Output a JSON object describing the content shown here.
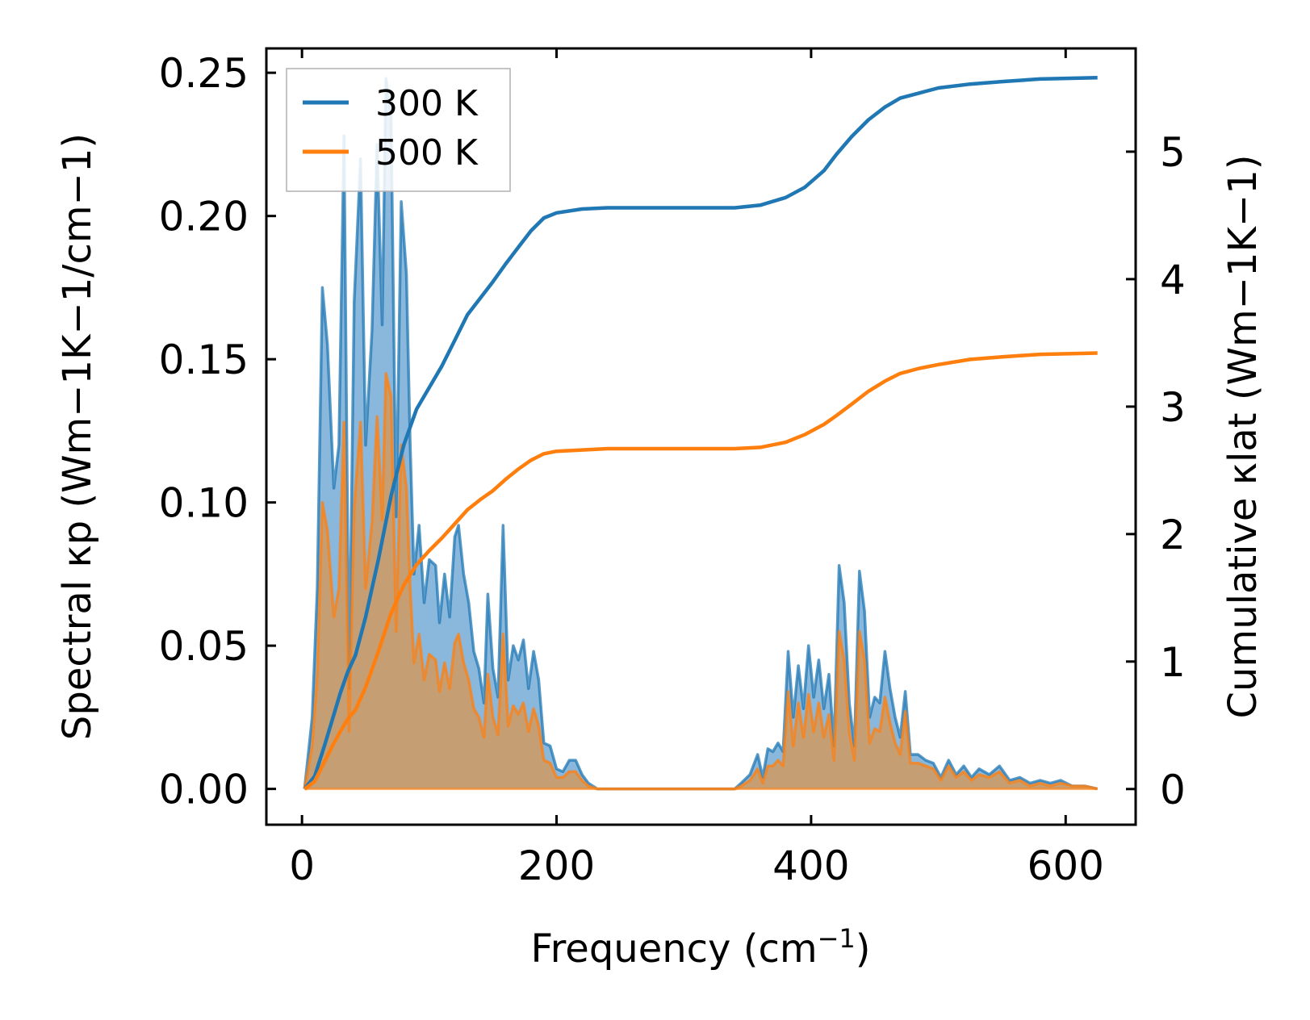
{
  "chart_data": {
    "type": "line",
    "title": "",
    "xlabel": "Frequency (cm",
    "xlabel_sup": "−1",
    "xlabel_end": ")",
    "ylabel_left": "Spectral κp (Wm−1K−1/cm−1)",
    "ylabel_right": "Cumulative κlat (Wm−1K−1)",
    "xlim": [
      -28,
      655
    ],
    "ylim_left": [
      -0.0125,
      0.2585
    ],
    "ylim_right": [
      -0.28,
      5.81
    ],
    "x_ticks": [
      0,
      200,
      400,
      600
    ],
    "x_tick_labels": [
      "0",
      "200",
      "400",
      "600"
    ],
    "y_left_ticks": [
      0,
      0.05,
      0.1,
      0.15,
      0.2,
      0.25
    ],
    "y_left_tick_labels": [
      "0.00",
      "0.05",
      "0.10",
      "0.15",
      "0.20",
      "0.25"
    ],
    "y_right_ticks": [
      0,
      1,
      2,
      3,
      4,
      5
    ],
    "y_right_tick_labels": [
      "0",
      "1",
      "2",
      "3",
      "4",
      "5"
    ],
    "legend": {
      "position": "top-left",
      "entries": [
        "300 K",
        "500 K"
      ]
    },
    "colors": {
      "300K": "#1f77b4",
      "500K": "#ff7f0e",
      "fill300": "#8ab7dc",
      "fill500": "#c69e74"
    },
    "series": [
      {
        "name": "300 K",
        "spectral": [
          [
            2,
            0
          ],
          [
            8,
            0.025
          ],
          [
            12,
            0.07
          ],
          [
            16,
            0.175
          ],
          [
            20,
            0.155
          ],
          [
            25,
            0.105
          ],
          [
            29,
            0.12
          ],
          [
            33,
            0.228
          ],
          [
            37,
            0.035
          ],
          [
            41,
            0.17
          ],
          [
            46,
            0.22
          ],
          [
            50,
            0.12
          ],
          [
            55,
            0.16
          ],
          [
            59,
            0.225
          ],
          [
            63,
            0.162
          ],
          [
            66,
            0.248
          ],
          [
            70,
            0.235
          ],
          [
            74,
            0.095
          ],
          [
            78,
            0.205
          ],
          [
            82,
            0.18
          ],
          [
            85,
            0.12
          ],
          [
            88,
            0.075
          ],
          [
            92,
            0.092
          ],
          [
            96,
            0.065
          ],
          [
            100,
            0.08
          ],
          [
            105,
            0.078
          ],
          [
            108,
            0.058
          ],
          [
            112,
            0.075
          ],
          [
            116,
            0.06
          ],
          [
            120,
            0.088
          ],
          [
            123,
            0.092
          ],
          [
            127,
            0.075
          ],
          [
            131,
            0.065
          ],
          [
            135,
            0.048
          ],
          [
            139,
            0.042
          ],
          [
            143,
            0.03
          ],
          [
            146,
            0.068
          ],
          [
            150,
            0.042
          ],
          [
            154,
            0.032
          ],
          [
            158,
            0.092
          ],
          [
            162,
            0.038
          ],
          [
            166,
            0.05
          ],
          [
            170,
            0.045
          ],
          [
            174,
            0.052
          ],
          [
            178,
            0.035
          ],
          [
            182,
            0.048
          ],
          [
            186,
            0.038
          ],
          [
            190,
            0.016
          ],
          [
            195,
            0.015
          ],
          [
            200,
            0.007
          ],
          [
            205,
            0.006
          ],
          [
            210,
            0.01
          ],
          [
            215,
            0.01
          ],
          [
            220,
            0.005
          ],
          [
            225,
            0.002
          ],
          [
            232,
            0
          ],
          [
            340,
            0
          ],
          [
            345,
            0.002
          ],
          [
            352,
            0.005
          ],
          [
            358,
            0.012
          ],
          [
            362,
            0.004
          ],
          [
            366,
            0.014
          ],
          [
            370,
            0.013
          ],
          [
            374,
            0.016
          ],
          [
            378,
            0.013
          ],
          [
            382,
            0.048
          ],
          [
            386,
            0.025
          ],
          [
            390,
            0.043
          ],
          [
            394,
            0.028
          ],
          [
            398,
            0.05
          ],
          [
            402,
            0.032
          ],
          [
            406,
            0.045
          ],
          [
            410,
            0.028
          ],
          [
            414,
            0.04
          ],
          [
            418,
            0.015
          ],
          [
            422,
            0.078
          ],
          [
            426,
            0.065
          ],
          [
            430,
            0.03
          ],
          [
            434,
            0.015
          ],
          [
            438,
            0.076
          ],
          [
            442,
            0.062
          ],
          [
            446,
            0.025
          ],
          [
            450,
            0.032
          ],
          [
            454,
            0.03
          ],
          [
            458,
            0.048
          ],
          [
            462,
            0.035
          ],
          [
            466,
            0.025
          ],
          [
            470,
            0.018
          ],
          [
            474,
            0.034
          ],
          [
            478,
            0.012
          ],
          [
            484,
            0.012
          ],
          [
            490,
            0.01
          ],
          [
            496,
            0.009
          ],
          [
            502,
            0.004
          ],
          [
            508,
            0.01
          ],
          [
            514,
            0.005
          ],
          [
            520,
            0.008
          ],
          [
            526,
            0.004
          ],
          [
            532,
            0.007
          ],
          [
            540,
            0.005
          ],
          [
            548,
            0.008
          ],
          [
            556,
            0.003
          ],
          [
            564,
            0.004
          ],
          [
            572,
            0.002
          ],
          [
            580,
            0.003
          ],
          [
            588,
            0.002
          ],
          [
            596,
            0.003
          ],
          [
            605,
            0.001
          ],
          [
            615,
            0.001
          ],
          [
            625,
            0
          ]
        ],
        "cumulative": [
          [
            2,
            0
          ],
          [
            10,
            0.1
          ],
          [
            18,
            0.35
          ],
          [
            24,
            0.55
          ],
          [
            30,
            0.75
          ],
          [
            36,
            0.92
          ],
          [
            42,
            1.05
          ],
          [
            50,
            1.35
          ],
          [
            60,
            1.8
          ],
          [
            70,
            2.3
          ],
          [
            80,
            2.7
          ],
          [
            90,
            2.98
          ],
          [
            100,
            3.15
          ],
          [
            110,
            3.32
          ],
          [
            120,
            3.52
          ],
          [
            130,
            3.72
          ],
          [
            140,
            3.85
          ],
          [
            150,
            3.98
          ],
          [
            160,
            4.12
          ],
          [
            170,
            4.25
          ],
          [
            180,
            4.38
          ],
          [
            190,
            4.48
          ],
          [
            200,
            4.52
          ],
          [
            220,
            4.55
          ],
          [
            240,
            4.56
          ],
          [
            340,
            4.56
          ],
          [
            360,
            4.58
          ],
          [
            380,
            4.64
          ],
          [
            395,
            4.72
          ],
          [
            410,
            4.85
          ],
          [
            420,
            4.98
          ],
          [
            432,
            5.12
          ],
          [
            445,
            5.25
          ],
          [
            458,
            5.35
          ],
          [
            470,
            5.42
          ],
          [
            485,
            5.46
          ],
          [
            500,
            5.5
          ],
          [
            525,
            5.53
          ],
          [
            550,
            5.55
          ],
          [
            580,
            5.57
          ],
          [
            625,
            5.58
          ]
        ]
      },
      {
        "name": "500 K",
        "spectral": [
          [
            2,
            0
          ],
          [
            8,
            0.015
          ],
          [
            12,
            0.04
          ],
          [
            16,
            0.1
          ],
          [
            20,
            0.09
          ],
          [
            25,
            0.06
          ],
          [
            29,
            0.07
          ],
          [
            33,
            0.128
          ],
          [
            37,
            0.02
          ],
          [
            41,
            0.098
          ],
          [
            46,
            0.128
          ],
          [
            50,
            0.07
          ],
          [
            55,
            0.093
          ],
          [
            59,
            0.13
          ],
          [
            63,
            0.094
          ],
          [
            66,
            0.145
          ],
          [
            70,
            0.137
          ],
          [
            74,
            0.055
          ],
          [
            78,
            0.12
          ],
          [
            82,
            0.105
          ],
          [
            85,
            0.07
          ],
          [
            88,
            0.044
          ],
          [
            92,
            0.054
          ],
          [
            96,
            0.038
          ],
          [
            100,
            0.047
          ],
          [
            105,
            0.045
          ],
          [
            108,
            0.034
          ],
          [
            112,
            0.044
          ],
          [
            116,
            0.035
          ],
          [
            120,
            0.051
          ],
          [
            123,
            0.054
          ],
          [
            127,
            0.044
          ],
          [
            131,
            0.038
          ],
          [
            135,
            0.028
          ],
          [
            139,
            0.025
          ],
          [
            143,
            0.018
          ],
          [
            146,
            0.04
          ],
          [
            150,
            0.025
          ],
          [
            154,
            0.019
          ],
          [
            158,
            0.054
          ],
          [
            162,
            0.022
          ],
          [
            166,
            0.029
          ],
          [
            170,
            0.026
          ],
          [
            174,
            0.03
          ],
          [
            178,
            0.02
          ],
          [
            182,
            0.028
          ],
          [
            186,
            0.022
          ],
          [
            190,
            0.01
          ],
          [
            195,
            0.009
          ],
          [
            200,
            0.004
          ],
          [
            205,
            0.004
          ],
          [
            210,
            0.006
          ],
          [
            215,
            0.006
          ],
          [
            220,
            0.003
          ],
          [
            225,
            0.001
          ],
          [
            232,
            0
          ],
          [
            340,
            0
          ],
          [
            345,
            0.001
          ],
          [
            352,
            0.003
          ],
          [
            358,
            0.007
          ],
          [
            362,
            0.002
          ],
          [
            366,
            0.008
          ],
          [
            370,
            0.008
          ],
          [
            374,
            0.01
          ],
          [
            378,
            0.008
          ],
          [
            382,
            0.034
          ],
          [
            386,
            0.015
          ],
          [
            390,
            0.03
          ],
          [
            394,
            0.018
          ],
          [
            398,
            0.033
          ],
          [
            402,
            0.02
          ],
          [
            406,
            0.03
          ],
          [
            410,
            0.018
          ],
          [
            414,
            0.026
          ],
          [
            418,
            0.01
          ],
          [
            422,
            0.055
          ],
          [
            426,
            0.045
          ],
          [
            430,
            0.02
          ],
          [
            434,
            0.01
          ],
          [
            438,
            0.055
          ],
          [
            442,
            0.045
          ],
          [
            446,
            0.016
          ],
          [
            450,
            0.021
          ],
          [
            454,
            0.02
          ],
          [
            458,
            0.032
          ],
          [
            462,
            0.023
          ],
          [
            466,
            0.016
          ],
          [
            470,
            0.012
          ],
          [
            474,
            0.027
          ],
          [
            478,
            0.009
          ],
          [
            484,
            0.009
          ],
          [
            490,
            0.008
          ],
          [
            496,
            0.007
          ],
          [
            502,
            0.003
          ],
          [
            508,
            0.008
          ],
          [
            514,
            0.004
          ],
          [
            520,
            0.006
          ],
          [
            526,
            0.003
          ],
          [
            532,
            0.005
          ],
          [
            540,
            0.004
          ],
          [
            548,
            0.006
          ],
          [
            556,
            0.002
          ],
          [
            564,
            0.003
          ],
          [
            572,
            0.001
          ],
          [
            580,
            0.002
          ],
          [
            588,
            0.001
          ],
          [
            596,
            0.002
          ],
          [
            605,
            0.001
          ],
          [
            615,
            0.001
          ],
          [
            625,
            0
          ]
        ],
        "cumulative": [
          [
            2,
            0
          ],
          [
            10,
            0.06
          ],
          [
            18,
            0.22
          ],
          [
            24,
            0.34
          ],
          [
            30,
            0.45
          ],
          [
            36,
            0.55
          ],
          [
            42,
            0.62
          ],
          [
            50,
            0.8
          ],
          [
            60,
            1.08
          ],
          [
            70,
            1.38
          ],
          [
            80,
            1.6
          ],
          [
            90,
            1.76
          ],
          [
            100,
            1.87
          ],
          [
            110,
            1.97
          ],
          [
            120,
            2.08
          ],
          [
            130,
            2.19
          ],
          [
            140,
            2.27
          ],
          [
            150,
            2.34
          ],
          [
            160,
            2.43
          ],
          [
            170,
            2.51
          ],
          [
            180,
            2.58
          ],
          [
            190,
            2.63
          ],
          [
            200,
            2.65
          ],
          [
            220,
            2.66
          ],
          [
            240,
            2.67
          ],
          [
            340,
            2.67
          ],
          [
            360,
            2.68
          ],
          [
            380,
            2.72
          ],
          [
            395,
            2.78
          ],
          [
            410,
            2.86
          ],
          [
            420,
            2.93
          ],
          [
            432,
            3.02
          ],
          [
            445,
            3.12
          ],
          [
            458,
            3.2
          ],
          [
            470,
            3.26
          ],
          [
            485,
            3.3
          ],
          [
            500,
            3.33
          ],
          [
            525,
            3.37
          ],
          [
            550,
            3.39
          ],
          [
            580,
            3.41
          ],
          [
            625,
            3.42
          ]
        ]
      }
    ]
  }
}
